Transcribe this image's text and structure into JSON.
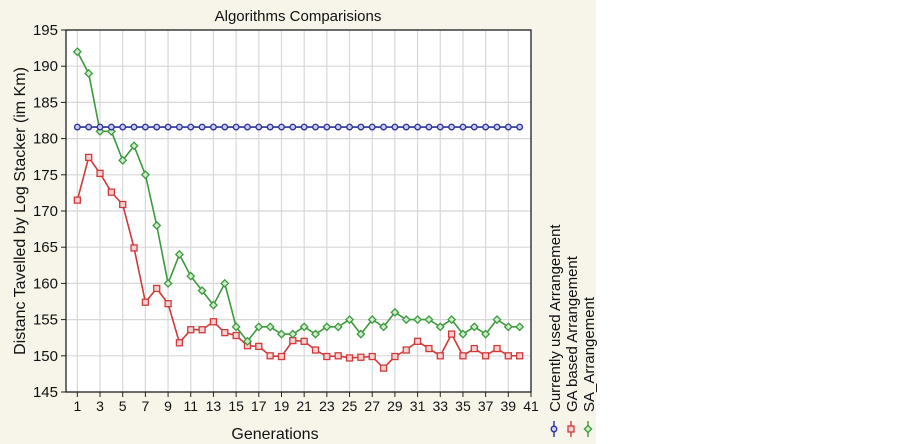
{
  "chart_data": {
    "type": "line",
    "title": "Algorithms Comparisions",
    "xlabel": "Generations",
    "ylabel": "Distanc Tavelled by Log Stacker (im Km)",
    "xlim": [
      0,
      41
    ],
    "ylim": [
      145,
      195
    ],
    "xticks": [
      1,
      3,
      5,
      7,
      9,
      11,
      13,
      15,
      17,
      19,
      21,
      23,
      25,
      27,
      29,
      31,
      33,
      35,
      37,
      39,
      41
    ],
    "yticks": [
      145,
      150,
      155,
      160,
      165,
      170,
      175,
      180,
      185,
      190,
      195
    ],
    "grid": true,
    "legend_placement": "right, vertical",
    "x": [
      1,
      2,
      3,
      4,
      5,
      6,
      7,
      8,
      9,
      10,
      11,
      12,
      13,
      14,
      15,
      16,
      17,
      18,
      19,
      20,
      21,
      22,
      23,
      24,
      25,
      26,
      27,
      28,
      29,
      30,
      31,
      32,
      33,
      34,
      35,
      36,
      37,
      38,
      39,
      40
    ],
    "series": [
      {
        "name": "Currently used Arrangement",
        "color": "#2b2f9a",
        "marker": "circle",
        "values": [
          181.6,
          181.6,
          181.6,
          181.6,
          181.6,
          181.6,
          181.6,
          181.6,
          181.6,
          181.6,
          181.6,
          181.6,
          181.6,
          181.6,
          181.6,
          181.6,
          181.6,
          181.6,
          181.6,
          181.6,
          181.6,
          181.6,
          181.6,
          181.6,
          181.6,
          181.6,
          181.6,
          181.6,
          181.6,
          181.6,
          181.6,
          181.6,
          181.6,
          181.6,
          181.6,
          181.6,
          181.6,
          181.6,
          181.6,
          181.6
        ]
      },
      {
        "name": "GA based Arrangement",
        "color": "#d23a3a",
        "marker": "square",
        "values": [
          171.5,
          177.4,
          175.2,
          172.6,
          170.9,
          164.9,
          157.4,
          159.3,
          157.2,
          151.8,
          153.6,
          153.6,
          154.7,
          153.2,
          152.8,
          151.4,
          151.3,
          150.0,
          149.9,
          152.1,
          152.0,
          150.8,
          149.9,
          150.0,
          149.7,
          149.8,
          149.9,
          148.3,
          149.9,
          150.8,
          152.0,
          151.0,
          150.0,
          153.0,
          150.0,
          151.0,
          150.0,
          151.0,
          150.0,
          150.0
        ]
      },
      {
        "name": "SA_Arrangement",
        "color": "#3c9a3c",
        "marker": "diamond",
        "values": [
          192,
          189,
          181,
          181,
          177,
          179,
          175,
          168,
          160,
          164,
          161,
          159,
          157,
          160,
          154,
          152,
          154,
          154,
          153,
          153,
          154,
          153,
          154,
          154,
          155,
          153,
          155,
          154,
          156,
          155,
          155,
          155,
          154,
          155,
          153,
          154,
          153,
          155,
          154,
          154
        ]
      }
    ]
  }
}
